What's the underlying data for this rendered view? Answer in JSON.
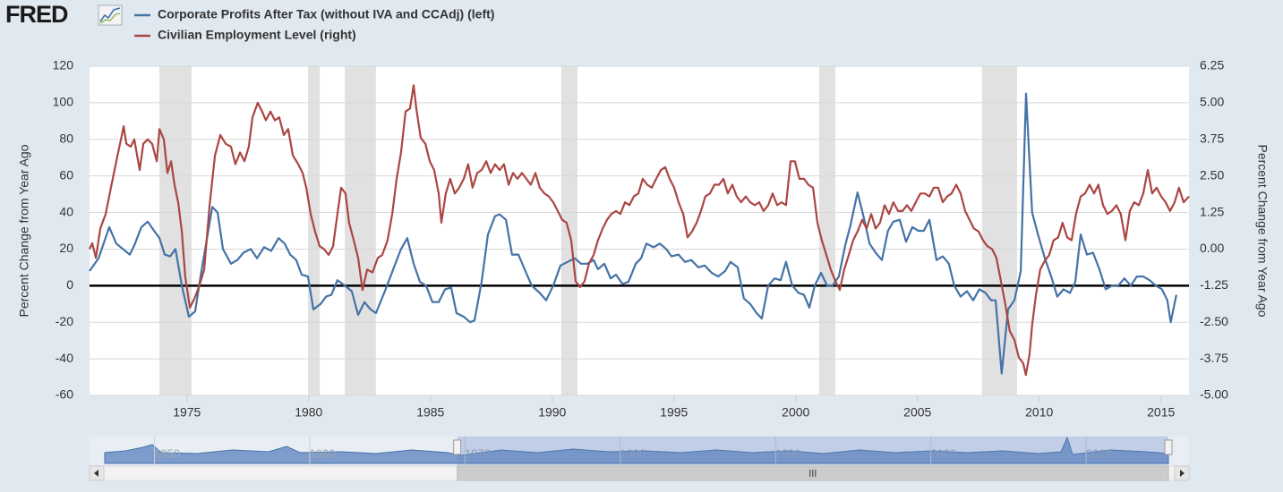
{
  "logo": "FRED",
  "chart_data": {
    "type": "line",
    "xlim": [
      1971,
      2016.15
    ],
    "xticks": [
      1975,
      1980,
      1985,
      1990,
      1995,
      2000,
      2005,
      2010,
      2015
    ],
    "ylim": [
      -60,
      120
    ],
    "yticks": [
      -60,
      -40,
      -20,
      0,
      20,
      40,
      60,
      80,
      100,
      120
    ],
    "y2lim": [
      -5,
      6.25
    ],
    "y2ticks": [
      {
        "value": -5,
        "label": "-5.00"
      },
      -3.75,
      {
        "value": -2.5,
        "label": "-2.50"
      },
      -1.25,
      {
        "value": 0,
        "label": "0.00"
      },
      1.25,
      {
        "value": 2.5,
        "label": "2.50"
      },
      3.75,
      {
        "value": 5,
        "label": "5.00"
      },
      6.25
    ],
    "ylabel": "Percent Change from Year Ago",
    "y2label": "Percent Change from Year Ago",
    "grid": true,
    "recessions": [
      [
        1973.87,
        1975.19
      ],
      [
        1979.97,
        1980.45
      ],
      [
        1981.48,
        1982.76
      ],
      [
        1990.37,
        1991.04
      ],
      [
        2000.96,
        2001.63
      ],
      [
        2007.65,
        2009.09
      ]
    ],
    "series": [
      {
        "name": "Corporate Profits After Tax (without IVA and CCAdj) (left)",
        "color": "#4572a7",
        "axis": "y",
        "x": [
          1971.0,
          1971.37,
          1971.81,
          1972.1,
          1972.65,
          1972.84,
          1973.13,
          1973.39,
          1973.65,
          1973.87,
          1974.09,
          1974.31,
          1974.53,
          1974.79,
          1975.08,
          1975.34,
          1975.56,
          1976.04,
          1976.26,
          1976.48,
          1976.81,
          1977.07,
          1977.32,
          1977.62,
          1977.88,
          1978.17,
          1978.46,
          1978.76,
          1979.01,
          1979.24,
          1979.49,
          1979.71,
          1979.97,
          1980.19,
          1980.49,
          1980.71,
          1980.93,
          1981.18,
          1981.48,
          1981.77,
          1982.03,
          1982.29,
          1982.54,
          1982.76,
          1983.13,
          1983.5,
          1983.79,
          1984.05,
          1984.31,
          1984.57,
          1984.82,
          1985.08,
          1985.34,
          1985.6,
          1985.85,
          1986.07,
          1986.37,
          1986.63,
          1986.81,
          1987.1,
          1987.36,
          1987.65,
          1987.84,
          1988.1,
          1988.35,
          1988.61,
          1988.9,
          1989.16,
          1989.49,
          1989.75,
          1990.04,
          1990.34,
          1990.63,
          1990.93,
          1991.18,
          1991.44,
          1991.7,
          1991.88,
          1992.14,
          1992.4,
          1992.62,
          1992.88,
          1993.13,
          1993.43,
          1993.65,
          1993.87,
          1994.16,
          1994.42,
          1994.68,
          1994.9,
          1995.19,
          1995.45,
          1995.71,
          1996.0,
          1996.26,
          1996.55,
          1996.81,
          1997.1,
          1997.32,
          1997.62,
          1997.87,
          1998.13,
          1998.39,
          1998.61,
          1998.87,
          1999.13,
          1999.38,
          1999.6,
          1999.86,
          2000.12,
          2000.34,
          2000.56,
          2000.78,
          2001.04,
          2001.29,
          2001.51,
          2001.77,
          2002.03,
          2002.25,
          2002.54,
          2002.8,
          2003.03,
          2003.28,
          2003.54,
          2003.79,
          2004.01,
          2004.27,
          2004.53,
          2004.79,
          2005.04,
          2005.26,
          2005.49,
          2005.78,
          2006.04,
          2006.29,
          2006.51,
          2006.77,
          2007.03,
          2007.29,
          2007.54,
          2007.8,
          2008.02,
          2008.21,
          2008.46,
          2008.72,
          2008.98,
          2009.24,
          2009.46,
          2009.71,
          2009.97,
          2010.23,
          2010.49,
          2010.74,
          2011.0,
          2011.26,
          2011.48,
          2011.7,
          2011.96,
          2012.21,
          2012.47,
          2012.73,
          2012.99,
          2013.24,
          2013.5,
          2013.76,
          2014.01,
          2014.27,
          2014.53,
          2014.79,
          2015.04,
          2015.26,
          2015.4,
          2015.63
        ],
        "values": [
          8,
          15,
          32,
          23,
          17,
          22,
          32,
          35,
          30,
          26,
          17,
          16,
          20,
          0,
          -17,
          -14,
          5,
          43,
          40,
          20,
          12,
          14,
          18,
          20,
          15,
          21,
          19,
          26,
          23,
          17,
          14,
          6,
          5,
          -13,
          -10,
          -6,
          -5,
          3,
          0,
          -3,
          -16,
          -9,
          -13,
          -15,
          -3,
          10,
          20,
          26,
          12,
          2,
          0,
          -9,
          -9,
          -2,
          -1,
          -15,
          -17,
          -20,
          -19,
          2,
          28,
          38,
          39,
          36,
          17,
          17,
          8,
          0,
          -4,
          -8,
          0,
          11,
          13,
          15,
          12,
          12,
          14,
          9,
          12,
          4,
          6,
          1,
          2,
          12,
          15,
          23,
          21,
          23,
          20,
          16,
          17,
          13,
          14,
          10,
          11,
          7,
          5,
          8,
          13,
          10,
          -7,
          -10,
          -15,
          -18,
          0,
          4,
          3,
          13,
          0,
          -4,
          -5,
          -12,
          0,
          7,
          0,
          0,
          5,
          22,
          33,
          51,
          37,
          23,
          18,
          14,
          30,
          35,
          36,
          24,
          32,
          30,
          30,
          36,
          14,
          16,
          12,
          0,
          -6,
          -3,
          -8,
          -2,
          -4,
          -8,
          -8,
          -48,
          -13,
          -8,
          8,
          105,
          40,
          27,
          15,
          5,
          -6,
          -2,
          -4,
          2,
          28,
          17,
          18,
          9,
          -2,
          0,
          0,
          4,
          0,
          5,
          5,
          3,
          0,
          -2,
          -8,
          -20,
          -5
        ]
      },
      {
        "name": "Civilian Employment Level (right)",
        "color": "#aa4643",
        "axis": "y2",
        "x": [
          1971.0,
          1971.11,
          1971.26,
          1971.44,
          1971.66,
          1971.88,
          1972.1,
          1972.29,
          1972.4,
          1972.51,
          1972.69,
          1972.84,
          1973.06,
          1973.21,
          1973.39,
          1973.57,
          1973.76,
          1973.87,
          1974.05,
          1974.2,
          1974.35,
          1974.49,
          1974.64,
          1974.79,
          1974.93,
          1975.12,
          1975.3,
          1975.49,
          1975.71,
          1975.93,
          1976.15,
          1976.37,
          1976.59,
          1976.81,
          1976.99,
          1977.18,
          1977.36,
          1977.54,
          1977.69,
          1977.91,
          1978.09,
          1978.24,
          1978.43,
          1978.61,
          1978.79,
          1978.98,
          1979.16,
          1979.35,
          1979.57,
          1979.75,
          1979.9,
          1980.08,
          1980.26,
          1980.45,
          1980.63,
          1980.82,
          1981.0,
          1981.18,
          1981.33,
          1981.51,
          1981.66,
          1981.85,
          1982.03,
          1982.21,
          1982.4,
          1982.62,
          1982.84,
          1983.02,
          1983.24,
          1983.43,
          1983.61,
          1983.79,
          1983.98,
          1984.16,
          1984.31,
          1984.42,
          1984.6,
          1984.79,
          1984.97,
          1985.15,
          1985.34,
          1985.45,
          1985.63,
          1985.81,
          1986.0,
          1986.18,
          1986.37,
          1986.55,
          1986.73,
          1986.92,
          1987.1,
          1987.29,
          1987.47,
          1987.65,
          1987.84,
          1988.02,
          1988.21,
          1988.39,
          1988.57,
          1988.76,
          1988.94,
          1989.12,
          1989.31,
          1989.49,
          1989.68,
          1989.86,
          1990.04,
          1990.23,
          1990.41,
          1990.59,
          1990.78,
          1990.96,
          1991.15,
          1991.33,
          1991.51,
          1991.7,
          1991.88,
          1992.07,
          1992.25,
          1992.43,
          1992.62,
          1992.8,
          1992.99,
          1993.17,
          1993.35,
          1993.54,
          1993.72,
          1993.9,
          1994.09,
          1994.27,
          1994.46,
          1994.64,
          1994.82,
          1995.01,
          1995.19,
          1995.38,
          1995.56,
          1995.74,
          1995.93,
          1996.11,
          1996.29,
          1996.48,
          1996.66,
          1996.85,
          1997.03,
          1997.21,
          1997.4,
          1997.58,
          1997.76,
          1997.95,
          1998.13,
          1998.32,
          1998.5,
          1998.68,
          1998.87,
          1999.05,
          1999.24,
          1999.42,
          1999.6,
          1999.79,
          1999.97,
          2000.15,
          2000.34,
          2000.52,
          2000.71,
          2000.89,
          2001.07,
          2001.26,
          2001.44,
          2001.63,
          2001.81,
          2001.99,
          2002.18,
          2002.36,
          2002.54,
          2002.73,
          2002.91,
          2003.1,
          2003.28,
          2003.46,
          2003.65,
          2003.83,
          2004.01,
          2004.2,
          2004.38,
          2004.57,
          2004.75,
          2004.93,
          2005.12,
          2005.3,
          2005.49,
          2005.67,
          2005.85,
          2006.04,
          2006.22,
          2006.4,
          2006.59,
          2006.77,
          2006.96,
          2007.14,
          2007.32,
          2007.51,
          2007.69,
          2007.87,
          2008.06,
          2008.24,
          2008.43,
          2008.61,
          2008.79,
          2008.98,
          2009.16,
          2009.34,
          2009.45,
          2009.6,
          2009.71,
          2009.86,
          2010.04,
          2010.23,
          2010.41,
          2010.59,
          2010.78,
          2010.96,
          2011.15,
          2011.33,
          2011.51,
          2011.7,
          2011.88,
          2012.07,
          2012.25,
          2012.43,
          2012.62,
          2012.8,
          2012.98,
          2013.17,
          2013.35,
          2013.54,
          2013.72,
          2013.9,
          2014.09,
          2014.27,
          2014.46,
          2014.64,
          2014.82,
          2015.01,
          2015.19,
          2015.37,
          2015.56,
          2015.74,
          2015.93,
          2016.15
        ],
        "values": [
          0.0,
          0.2,
          -0.3,
          0.7,
          1.2,
          2.1,
          3.0,
          3.75,
          4.2,
          3.6,
          3.5,
          3.75,
          2.7,
          3.6,
          3.75,
          3.6,
          3.0,
          4.1,
          3.75,
          2.6,
          3.0,
          2.2,
          1.6,
          0.6,
          -0.95,
          -2.0,
          -1.7,
          -1.3,
          -0.7,
          1.5,
          3.2,
          3.9,
          3.6,
          3.5,
          2.9,
          3.3,
          3.0,
          3.5,
          4.5,
          5.0,
          4.7,
          4.4,
          4.7,
          4.4,
          4.5,
          3.9,
          4.1,
          3.2,
          2.9,
          2.6,
          2.1,
          1.2,
          0.6,
          0.1,
          0.0,
          -0.2,
          0.1,
          1.2,
          2.1,
          1.9,
          0.9,
          0.3,
          -0.3,
          -1.4,
          -0.7,
          -0.8,
          -0.3,
          -0.2,
          0.3,
          1.2,
          2.4,
          3.3,
          4.7,
          4.8,
          5.6,
          4.8,
          3.8,
          3.6,
          3.0,
          2.7,
          1.9,
          0.9,
          1.9,
          2.4,
          1.9,
          2.1,
          2.4,
          2.9,
          2.1,
          2.6,
          2.7,
          3.0,
          2.6,
          2.9,
          2.7,
          2.9,
          2.2,
          2.6,
          2.4,
          2.6,
          2.4,
          2.2,
          2.6,
          2.1,
          1.9,
          1.8,
          1.6,
          1.3,
          1.0,
          0.9,
          0.3,
          -1.1,
          -1.3,
          -1.1,
          -0.5,
          -0.2,
          0.3,
          0.7,
          1.0,
          1.2,
          1.3,
          1.2,
          1.6,
          1.5,
          1.8,
          1.9,
          2.4,
          2.2,
          2.1,
          2.4,
          2.7,
          2.8,
          2.4,
          2.1,
          1.6,
          1.2,
          0.4,
          0.6,
          0.9,
          1.3,
          1.8,
          1.9,
          2.2,
          2.2,
          2.4,
          1.9,
          2.2,
          1.8,
          1.6,
          1.8,
          1.6,
          1.5,
          1.6,
          1.3,
          1.5,
          1.9,
          1.5,
          1.6,
          1.5,
          3.0,
          3.0,
          2.4,
          2.4,
          2.2,
          2.1,
          0.9,
          0.3,
          -0.2,
          -0.7,
          -1.1,
          -1.4,
          -0.7,
          -0.2,
          0.3,
          0.6,
          1.0,
          0.7,
          1.2,
          0.7,
          0.9,
          1.5,
          1.2,
          1.6,
          1.3,
          1.3,
          1.5,
          1.3,
          1.6,
          1.9,
          1.9,
          1.8,
          2.1,
          2.1,
          1.6,
          1.8,
          1.9,
          2.2,
          1.9,
          1.3,
          1.0,
          0.7,
          0.6,
          0.3,
          0.1,
          0.0,
          -0.3,
          -1.1,
          -1.9,
          -2.8,
          -3.1,
          -3.7,
          -3.9,
          -4.3,
          -3.6,
          -2.6,
          -1.6,
          -0.7,
          -0.4,
          -0.2,
          0.3,
          0.4,
          0.9,
          0.4,
          0.3,
          1.2,
          1.8,
          1.9,
          2.2,
          1.9,
          2.2,
          1.5,
          1.2,
          1.3,
          1.5,
          1.2,
          0.3,
          1.3,
          1.6,
          1.5,
          1.9,
          2.7,
          1.9,
          2.1,
          1.8,
          1.6,
          1.3,
          1.6,
          2.1,
          1.6,
          1.8
        ]
      }
    ],
    "navigator": {
      "xlim": [
        1946.8,
        2015.3
      ],
      "xticks": [
        1950,
        1960,
        1970,
        1980,
        1990,
        2000,
        2010
      ],
      "selection": [
        1969.5,
        2015.3
      ]
    }
  }
}
